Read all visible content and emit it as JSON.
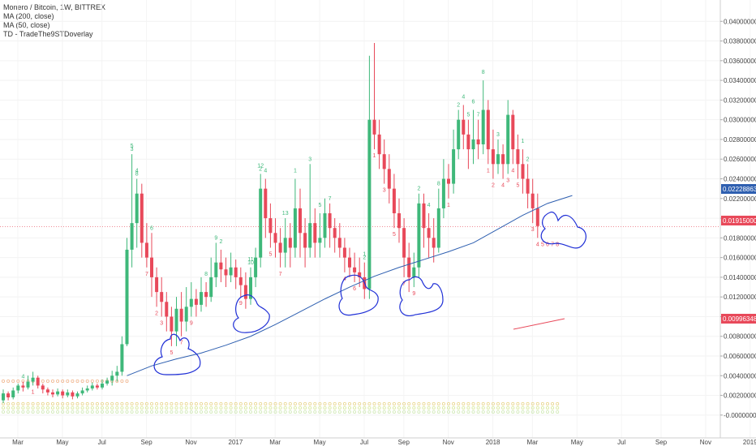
{
  "legend": {
    "title": "Monero / Bitcoin, 1W, BITTREX",
    "ma200": "MA (200, close)",
    "ma50": "MA (50, close)",
    "td": "TD - TradeThe9STDoverlay"
  },
  "colors": {
    "up": "#3fb87a",
    "down": "#e8495a",
    "ma": "#2e5fb0",
    "annotation": "#1f2fd6",
    "priceLine": "#e8495a",
    "maTag": "#2e5fb0",
    "priceTag": "#e8495a",
    "trendTag": "#e8495a"
  },
  "chart_data": {
    "type": "candlestick",
    "ylim": [
      -0.001,
      0.042
    ],
    "y_ticks": [
      "0.04000000",
      "0.03800000",
      "0.03600000",
      "0.03400000",
      "0.03200000",
      "0.03000000",
      "0.02800000",
      "0.02600000",
      "0.02400000",
      "0.02200000",
      "0.02000000",
      "0.01800000",
      "0.01600000",
      "0.01400000",
      "0.01200000",
      "0.01000000",
      "0.00800000",
      "0.00600000",
      "0.00400000",
      "0.00200000",
      "-0.00000000"
    ],
    "y_tick_values": [
      0.04,
      0.038,
      0.036,
      0.034,
      0.032,
      0.03,
      0.028,
      0.026,
      0.024,
      0.022,
      0.02,
      0.018,
      0.016,
      0.014,
      0.012,
      0.01,
      0.008,
      0.006,
      0.004,
      0.002,
      0.0
    ],
    "x_labels": [
      "Mar",
      "May",
      "Jul",
      "Sep",
      "Nov",
      "2017",
      "Mar",
      "May",
      "Jul",
      "Sep",
      "Nov",
      "2018",
      "Mar",
      "May",
      "Jul",
      "Sep",
      "Nov",
      "2019"
    ],
    "x_label_weeks": [
      0,
      9,
      17,
      26,
      35,
      44,
      52,
      61,
      70,
      78,
      87,
      96,
      104,
      113,
      122,
      130,
      139,
      148
    ],
    "ma_tag": "0.02228863",
    "last_price_tag": "0.01915000",
    "trend_tag": "0.00996348",
    "last_price": 0.01915,
    "candles": [
      [
        0.0015,
        0.0022,
        0.0012,
        0.0026
      ],
      [
        0.0022,
        0.0018,
        0.0015,
        0.0024
      ],
      [
        0.0018,
        0.0025,
        0.0016,
        0.0028
      ],
      [
        0.0025,
        0.003,
        0.0022,
        0.0032
      ],
      [
        0.003,
        0.0028,
        0.0024,
        0.0034
      ],
      [
        0.0028,
        0.0034,
        0.0026,
        0.004
      ],
      [
        0.0034,
        0.0038,
        0.003,
        0.0044
      ],
      [
        0.0038,
        0.003,
        0.0027,
        0.004
      ],
      [
        0.003,
        0.0026,
        0.0022,
        0.0032
      ],
      [
        0.0026,
        0.0023,
        0.002,
        0.0028
      ],
      [
        0.0023,
        0.0021,
        0.0018,
        0.0026
      ],
      [
        0.0021,
        0.0024,
        0.0019,
        0.0027
      ],
      [
        0.0024,
        0.002,
        0.0017,
        0.0026
      ],
      [
        0.002,
        0.0023,
        0.0018,
        0.0026
      ],
      [
        0.0023,
        0.0019,
        0.0016,
        0.0025
      ],
      [
        0.0019,
        0.0022,
        0.0017,
        0.0024
      ],
      [
        0.0022,
        0.0025,
        0.002,
        0.0028
      ],
      [
        0.0025,
        0.0027,
        0.0023,
        0.003
      ],
      [
        0.0027,
        0.003,
        0.0025,
        0.0033
      ],
      [
        0.003,
        0.0028,
        0.0026,
        0.0032
      ],
      [
        0.0028,
        0.0032,
        0.0026,
        0.0036
      ],
      [
        0.0032,
        0.0035,
        0.003,
        0.0038
      ],
      [
        0.0035,
        0.004,
        0.003,
        0.0045
      ],
      [
        0.004,
        0.0044,
        0.0034,
        0.005
      ],
      [
        0.0044,
        0.0072,
        0.004,
        0.008
      ],
      [
        0.0072,
        0.0168,
        0.007,
        0.018
      ],
      [
        0.0168,
        0.0195,
        0.015,
        0.0265
      ],
      [
        0.0195,
        0.0225,
        0.017,
        0.024
      ],
      [
        0.0225,
        0.0175,
        0.016,
        0.0235
      ],
      [
        0.0175,
        0.016,
        0.015,
        0.0195
      ],
      [
        0.016,
        0.014,
        0.012,
        0.0185
      ],
      [
        0.014,
        0.0125,
        0.011,
        0.015
      ],
      [
        0.0125,
        0.0115,
        0.01,
        0.014
      ],
      [
        0.0115,
        0.01,
        0.0085,
        0.0125
      ],
      [
        0.01,
        0.0085,
        0.007,
        0.011
      ],
      [
        0.0085,
        0.0108,
        0.007,
        0.012
      ],
      [
        0.0108,
        0.0095,
        0.008,
        0.0125
      ],
      [
        0.0095,
        0.011,
        0.0085,
        0.013
      ],
      [
        0.011,
        0.0118,
        0.01,
        0.0135
      ],
      [
        0.0118,
        0.0112,
        0.01,
        0.0128
      ],
      [
        0.0112,
        0.0125,
        0.0105,
        0.014
      ],
      [
        0.0125,
        0.012,
        0.011,
        0.0135
      ],
      [
        0.012,
        0.014,
        0.0115,
        0.016
      ],
      [
        0.014,
        0.0155,
        0.013,
        0.0175
      ],
      [
        0.0155,
        0.0148,
        0.0135,
        0.0168
      ],
      [
        0.0148,
        0.0142,
        0.013,
        0.016
      ],
      [
        0.0142,
        0.015,
        0.0135,
        0.0165
      ],
      [
        0.015,
        0.014,
        0.0128,
        0.0158
      ],
      [
        0.014,
        0.0132,
        0.012,
        0.015
      ],
      [
        0.0132,
        0.0118,
        0.0108,
        0.0145
      ],
      [
        0.0118,
        0.014,
        0.0112,
        0.015
      ],
      [
        0.014,
        0.016,
        0.013,
        0.017
      ],
      [
        0.016,
        0.023,
        0.015,
        0.0245
      ],
      [
        0.023,
        0.02,
        0.018,
        0.024
      ],
      [
        0.02,
        0.0185,
        0.017,
        0.0215
      ],
      [
        0.0185,
        0.0175,
        0.016,
        0.02
      ],
      [
        0.0175,
        0.0165,
        0.015,
        0.019
      ],
      [
        0.0165,
        0.018,
        0.015,
        0.02
      ],
      [
        0.018,
        0.017,
        0.015,
        0.0195
      ],
      [
        0.017,
        0.021,
        0.016,
        0.024
      ],
      [
        0.021,
        0.0185,
        0.016,
        0.023
      ],
      [
        0.0185,
        0.017,
        0.015,
        0.02
      ],
      [
        0.017,
        0.0195,
        0.016,
        0.0255
      ],
      [
        0.0195,
        0.0175,
        0.016,
        0.021
      ],
      [
        0.0175,
        0.018,
        0.016,
        0.0205
      ],
      [
        0.018,
        0.0205,
        0.017,
        0.022
      ],
      [
        0.0205,
        0.019,
        0.017,
        0.0215
      ],
      [
        0.019,
        0.018,
        0.0165,
        0.02
      ],
      [
        0.018,
        0.017,
        0.016,
        0.0195
      ],
      [
        0.017,
        0.016,
        0.0145,
        0.018
      ],
      [
        0.016,
        0.015,
        0.014,
        0.017
      ],
      [
        0.015,
        0.0145,
        0.0135,
        0.0165
      ],
      [
        0.0145,
        0.014,
        0.013,
        0.016
      ],
      [
        0.014,
        0.0128,
        0.0118,
        0.0155
      ],
      [
        0.0128,
        0.03,
        0.0118,
        0.0365
      ],
      [
        0.03,
        0.0285,
        0.027,
        0.0378
      ],
      [
        0.0285,
        0.0265,
        0.025,
        0.03
      ],
      [
        0.0265,
        0.025,
        0.0235,
        0.028
      ],
      [
        0.025,
        0.023,
        0.0215,
        0.0265
      ],
      [
        0.023,
        0.0205,
        0.019,
        0.0245
      ],
      [
        0.0205,
        0.019,
        0.0175,
        0.022
      ],
      [
        0.019,
        0.016,
        0.014,
        0.02
      ],
      [
        0.016,
        0.014,
        0.0125,
        0.0175
      ],
      [
        0.014,
        0.015,
        0.013,
        0.0165
      ],
      [
        0.015,
        0.0215,
        0.014,
        0.0225
      ],
      [
        0.0215,
        0.019,
        0.017,
        0.0225
      ],
      [
        0.019,
        0.018,
        0.016,
        0.0205
      ],
      [
        0.018,
        0.017,
        0.0155,
        0.02
      ],
      [
        0.017,
        0.021,
        0.0165,
        0.023
      ],
      [
        0.021,
        0.024,
        0.02,
        0.026
      ],
      [
        0.024,
        0.0235,
        0.022,
        0.0255
      ],
      [
        0.0235,
        0.027,
        0.0225,
        0.029
      ],
      [
        0.027,
        0.03,
        0.026,
        0.031
      ],
      [
        0.03,
        0.0285,
        0.027,
        0.0315
      ],
      [
        0.0285,
        0.027,
        0.025,
        0.03
      ],
      [
        0.027,
        0.028,
        0.0255,
        0.031
      ],
      [
        0.028,
        0.0275,
        0.026,
        0.03
      ],
      [
        0.0275,
        0.031,
        0.0265,
        0.034
      ],
      [
        0.031,
        0.027,
        0.0255,
        0.032
      ],
      [
        0.027,
        0.0255,
        0.024,
        0.029
      ],
      [
        0.0255,
        0.0265,
        0.0245,
        0.028
      ],
      [
        0.0265,
        0.0255,
        0.024,
        0.0275
      ],
      [
        0.0255,
        0.0305,
        0.0245,
        0.032
      ],
      [
        0.0305,
        0.027,
        0.0255,
        0.031
      ],
      [
        0.027,
        0.0255,
        0.024,
        0.0285
      ],
      [
        0.0255,
        0.024,
        0.0225,
        0.027
      ],
      [
        0.024,
        0.0225,
        0.021,
        0.0255
      ],
      [
        0.0225,
        0.021,
        0.0195,
        0.024
      ],
      [
        0.021,
        0.0192,
        0.018,
        0.0225
      ]
    ],
    "ma50": [
      [
        25,
        0.004
      ],
      [
        30,
        0.005
      ],
      [
        35,
        0.0057
      ],
      [
        40,
        0.0063
      ],
      [
        45,
        0.0071
      ],
      [
        50,
        0.008
      ],
      [
        55,
        0.0092
      ],
      [
        60,
        0.0105
      ],
      [
        65,
        0.0118
      ],
      [
        70,
        0.013
      ],
      [
        75,
        0.0141
      ],
      [
        80,
        0.015
      ],
      [
        85,
        0.0158
      ],
      [
        90,
        0.0166
      ],
      [
        95,
        0.0175
      ],
      [
        100,
        0.0189
      ],
      [
        105,
        0.0203
      ],
      [
        110,
        0.0215
      ],
      [
        115,
        0.0223
      ]
    ],
    "td_counts": [
      {
        "w": 4,
        "t": "4",
        "c": "up"
      },
      {
        "w": 6,
        "t": "1",
        "c": "dn"
      },
      {
        "w": 26,
        "t": "3",
        "c": "up"
      },
      {
        "w": 27,
        "t": "4",
        "c": "up"
      },
      {
        "w": 27,
        "t": "8",
        "c": "up"
      },
      {
        "w": 29,
        "t": "7",
        "c": "dn"
      },
      {
        "w": 30,
        "t": "6",
        "c": "up"
      },
      {
        "w": 26,
        "t": "5",
        "c": "up"
      },
      {
        "w": 31,
        "t": "2",
        "c": "dn"
      },
      {
        "w": 32,
        "t": "3",
        "c": "dn"
      },
      {
        "w": 34,
        "t": "5",
        "c": "dn"
      },
      {
        "w": 36,
        "t": "7",
        "c": "dn"
      },
      {
        "w": 38,
        "t": "9",
        "c": "dn"
      },
      {
        "w": 41,
        "t": "8",
        "c": "up"
      },
      {
        "w": 43,
        "t": "9",
        "c": "up"
      },
      {
        "w": 44,
        "t": "2",
        "c": "up"
      },
      {
        "w": 48,
        "t": "9",
        "c": "dn"
      },
      {
        "w": 50,
        "t": "11",
        "c": "up"
      },
      {
        "w": 50,
        "t": "10",
        "c": "up"
      },
      {
        "w": 52,
        "t": "12",
        "c": "up"
      },
      {
        "w": 52,
        "t": "2",
        "c": "up"
      },
      {
        "w": 53,
        "t": "4",
        "c": "up"
      },
      {
        "w": 54,
        "t": "5",
        "c": "dn"
      },
      {
        "w": 56,
        "t": "7",
        "c": "dn"
      },
      {
        "w": 57,
        "t": "13",
        "c": "up"
      },
      {
        "w": 59,
        "t": "1",
        "c": "up"
      },
      {
        "w": 62,
        "t": "3",
        "c": "up"
      },
      {
        "w": 64,
        "t": "5",
        "c": "up"
      },
      {
        "w": 66,
        "t": "7",
        "c": "up"
      },
      {
        "w": 69,
        "t": "4",
        "c": "dn"
      },
      {
        "w": 71,
        "t": "6",
        "c": "dn"
      },
      {
        "w": 73,
        "t": "1",
        "c": "up"
      },
      {
        "w": 73,
        "t": "2",
        "c": "up"
      },
      {
        "w": 75,
        "t": "1",
        "c": "dn"
      },
      {
        "w": 77,
        "t": "3",
        "c": "dn"
      },
      {
        "w": 79,
        "t": "5",
        "c": "dn"
      },
      {
        "w": 81,
        "t": "7",
        "c": "dn"
      },
      {
        "w": 83,
        "t": "9",
        "c": "dn"
      },
      {
        "w": 84,
        "t": "2",
        "c": "up"
      },
      {
        "w": 86,
        "t": "4",
        "c": "up"
      },
      {
        "w": 88,
        "t": "8",
        "c": "up"
      },
      {
        "w": 90,
        "t": "1",
        "c": "dn"
      },
      {
        "w": 92,
        "t": "2",
        "c": "up"
      },
      {
        "w": 93,
        "t": "4",
        "c": "up"
      },
      {
        "w": 94,
        "t": "5",
        "c": "up"
      },
      {
        "w": 95,
        "t": "6",
        "c": "up"
      },
      {
        "w": 96,
        "t": "7",
        "c": "up"
      },
      {
        "w": 97,
        "t": "8",
        "c": "up"
      },
      {
        "w": 98,
        "t": "1",
        "c": "dn"
      },
      {
        "w": 99,
        "t": "2",
        "c": "dn"
      },
      {
        "w": 100,
        "t": "3",
        "c": "up"
      },
      {
        "w": 101,
        "t": "4",
        "c": "dn"
      },
      {
        "w": 102,
        "t": "3",
        "c": "dn"
      },
      {
        "w": 103,
        "t": "4",
        "c": "dn"
      },
      {
        "w": 104,
        "t": "5",
        "c": "dn"
      },
      {
        "w": 105,
        "t": "1",
        "c": "up"
      },
      {
        "w": 106,
        "t": "2",
        "c": "up"
      },
      {
        "w": 107,
        "t": "3",
        "c": "dn"
      },
      {
        "w": 108,
        "t": "4",
        "c": "dn"
      },
      {
        "w": 109,
        "t": "5",
        "c": "dn"
      },
      {
        "w": 110,
        "t": "6",
        "c": "dn"
      },
      {
        "w": 111,
        "t": "7",
        "c": "dn"
      },
      {
        "w": 112,
        "t": "8",
        "c": "dn"
      }
    ]
  }
}
